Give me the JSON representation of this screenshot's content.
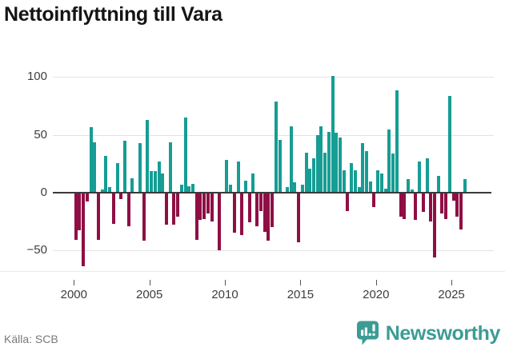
{
  "title": "Nettoinflyttning till Vara",
  "source": "Källa: SCB",
  "brand": {
    "name": "Newsworthy",
    "icon": "newsworthy-badge-bar-chart-icon"
  },
  "colors": {
    "positive": "#169d94",
    "negative": "#8f0f45",
    "grid": "#e3e3e3",
    "zero_axis": "#3a3a3a",
    "tick_text": "#3d3d3d",
    "title_text": "#151515",
    "source_text": "#7a7a7a",
    "brand_teal": "#3b9c95"
  },
  "chart_data": {
    "type": "bar",
    "title": "Nettoinflyttning till Vara",
    "xlabel": "",
    "ylabel": "",
    "unit": "net migration per quarter",
    "grid": true,
    "ylim": [
      -65,
      105
    ],
    "y_ticks": [
      100,
      50,
      0,
      -50
    ],
    "y_tick_labels": [
      "100",
      "50",
      "0",
      "−50"
    ],
    "x_tick_labels": [
      "2000",
      "2005",
      "2010",
      "2015",
      "2020",
      "2025"
    ],
    "categories": [
      "2000 Q1",
      "2000 Q2",
      "2000 Q3",
      "2000 Q4",
      "2001 Q1",
      "2001 Q2",
      "2001 Q3",
      "2001 Q4",
      "2002 Q1",
      "2002 Q2",
      "2002 Q3",
      "2002 Q4",
      "2003 Q1",
      "2003 Q2",
      "2003 Q3",
      "2003 Q4",
      "2004 Q1",
      "2004 Q2",
      "2004 Q3",
      "2004 Q4",
      "2005 Q1",
      "2005 Q2",
      "2005 Q3",
      "2005 Q4",
      "2006 Q1",
      "2006 Q2",
      "2006 Q3",
      "2006 Q4",
      "2007 Q1",
      "2007 Q2",
      "2007 Q3",
      "2007 Q4",
      "2008 Q1",
      "2008 Q2",
      "2008 Q3",
      "2008 Q4",
      "2009 Q1",
      "2009 Q2",
      "2009 Q3",
      "2009 Q4",
      "2010 Q1",
      "2010 Q2",
      "2010 Q3",
      "2010 Q4",
      "2011 Q1",
      "2011 Q2",
      "2011 Q3",
      "2011 Q4",
      "2012 Q1",
      "2012 Q2",
      "2012 Q3",
      "2012 Q4",
      "2013 Q1",
      "2013 Q2",
      "2013 Q3",
      "2013 Q4",
      "2014 Q1",
      "2014 Q2",
      "2014 Q3",
      "2014 Q4",
      "2015 Q1",
      "2015 Q2",
      "2015 Q3",
      "2015 Q4",
      "2016 Q1",
      "2016 Q2",
      "2016 Q3",
      "2016 Q4",
      "2017 Q1",
      "2017 Q2",
      "2017 Q3",
      "2017 Q4",
      "2018 Q1",
      "2018 Q2",
      "2018 Q3",
      "2018 Q4",
      "2019 Q1",
      "2019 Q2",
      "2019 Q3",
      "2019 Q4",
      "2020 Q1",
      "2020 Q2",
      "2020 Q3",
      "2020 Q4",
      "2021 Q1",
      "2021 Q2",
      "2021 Q3",
      "2021 Q4",
      "2022 Q1",
      "2022 Q2",
      "2022 Q3",
      "2022 Q4",
      "2023 Q1",
      "2023 Q2",
      "2023 Q3",
      "2023 Q4",
      "2024 Q1",
      "2024 Q2",
      "2024 Q3",
      "2024 Q4",
      "2025 Q1",
      "2025 Q2",
      "2025 Q3",
      "2025 Q4"
    ],
    "values": [
      -40,
      -32,
      -63,
      -7,
      56,
      43,
      -40,
      2,
      31,
      4,
      -26,
      25,
      -5,
      44,
      -28,
      12,
      0,
      42,
      -41,
      62,
      18,
      18,
      26,
      16,
      -27,
      43,
      -27,
      -20,
      6,
      64,
      5,
      7,
      -40,
      -23,
      -22,
      -17,
      -24,
      0,
      -49,
      0,
      28,
      6,
      -34,
      26,
      -36,
      10,
      -25,
      16,
      -28,
      -15,
      -33,
      -41,
      -29,
      78,
      45,
      0,
      4,
      57,
      8,
      -42,
      6,
      34,
      20,
      29,
      49,
      57,
      34,
      52,
      100,
      51,
      47,
      19,
      -15,
      25,
      19,
      4,
      42,
      35,
      9,
      -12,
      19,
      16,
      3,
      54,
      33,
      88,
      -20,
      -22,
      11,
      2,
      -23,
      26,
      -16,
      29,
      -24,
      -55,
      14,
      -17,
      -22,
      83,
      -6,
      -20,
      -31,
      11
    ]
  }
}
